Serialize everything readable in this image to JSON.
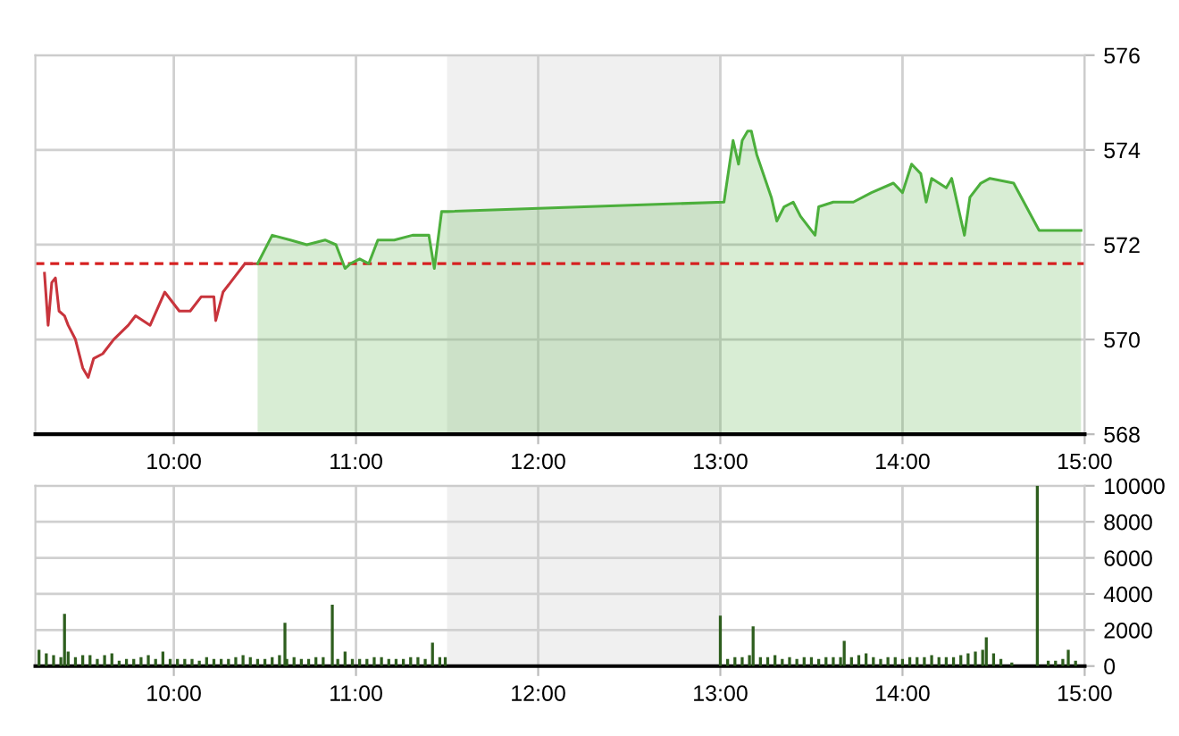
{
  "chart_data": [
    {
      "type": "area",
      "xlim": [
        9.24,
        15.0
      ],
      "ylim": [
        568,
        576
      ],
      "yticks": [
        568,
        570,
        572,
        574,
        576
      ],
      "xticks": [
        {
          "value": 10,
          "label": "10:00"
        },
        {
          "value": 11,
          "label": "11:00"
        },
        {
          "value": 12,
          "label": "12:00"
        },
        {
          "value": 13,
          "label": "13:00"
        },
        {
          "value": 14,
          "label": "14:00"
        },
        {
          "value": 15,
          "label": "15:00"
        }
      ],
      "grid": true,
      "bands": [
        {
          "axis": "x",
          "from": 11.5,
          "to": 13.0,
          "color": "#f0f0f0"
        }
      ],
      "ref_lines": [
        {
          "axis": "y",
          "value": 571.6,
          "color": "#d62020",
          "line_style": "dashed"
        }
      ],
      "series": [
        {
          "type": "line",
          "color": "#c8343c",
          "x": [
            9.29,
            9.31,
            9.33,
            9.35,
            9.37,
            9.4,
            9.42,
            9.46,
            9.5,
            9.53,
            9.56,
            9.61,
            9.67,
            9.75,
            9.79,
            9.87,
            9.95,
            10.03,
            10.09,
            10.15,
            10.22,
            10.23,
            10.27,
            10.33,
            10.39,
            10.46
          ],
          "values": [
            571.4,
            570.3,
            571.2,
            571.3,
            570.6,
            570.5,
            570.3,
            570.0,
            569.4,
            569.2,
            569.6,
            569.7,
            570.0,
            570.3,
            570.5,
            570.3,
            571.0,
            570.6,
            570.6,
            570.9,
            570.9,
            570.4,
            571.0,
            571.3,
            571.6,
            571.6
          ]
        },
        {
          "color": "#4caf3c",
          "x": [
            10.46,
            10.54,
            10.64,
            10.73,
            10.83,
            10.89,
            10.94,
            10.97,
            11.02,
            11.07,
            11.12,
            11.21,
            11.31,
            11.4,
            11.43,
            11.47,
            11.5,
            13.02,
            13.07,
            13.1,
            13.12,
            13.15,
            13.17,
            13.2,
            13.28,
            13.31,
            13.35,
            13.4,
            13.44,
            13.52,
            13.54,
            13.62,
            13.73,
            13.83,
            13.95,
            14.0,
            14.05,
            14.1,
            14.13,
            14.16,
            14.24,
            14.27,
            14.34,
            14.37,
            14.43,
            14.48,
            14.61,
            14.75,
            14.98
          ],
          "values": [
            571.6,
            572.2,
            572.1,
            572.0,
            572.1,
            572.0,
            571.5,
            571.6,
            571.7,
            571.6,
            572.1,
            572.1,
            572.2,
            572.2,
            571.5,
            572.7,
            572.7,
            572.9,
            574.2,
            573.7,
            574.2,
            574.4,
            574.4,
            573.9,
            573.0,
            572.5,
            572.8,
            572.9,
            572.6,
            572.2,
            572.8,
            572.9,
            572.9,
            573.1,
            573.3,
            573.1,
            573.7,
            573.5,
            572.9,
            573.4,
            573.2,
            573.4,
            572.2,
            573.0,
            573.3,
            573.4,
            573.3,
            572.3,
            572.3
          ]
        }
      ]
    },
    {
      "type": "bar",
      "xlim": [
        9.24,
        15.0
      ],
      "ylim": [
        0,
        10000
      ],
      "yticks": [
        0,
        2000,
        4000,
        6000,
        8000,
        10000
      ],
      "xticks": [
        {
          "value": 10,
          "label": "10:00"
        },
        {
          "value": 11,
          "label": "11:00"
        },
        {
          "value": 12,
          "label": "12:00"
        },
        {
          "value": 13,
          "label": "13:00"
        },
        {
          "value": 14,
          "label": "14:00"
        },
        {
          "value": 15,
          "label": "15:00"
        }
      ],
      "grid": true,
      "bands": [
        {
          "axis": "x",
          "from": 11.5,
          "to": 13.0,
          "color": "#f0f0f0"
        }
      ],
      "series": [
        {
          "color": "#2e5e1e",
          "x": [
            9.26,
            9.3,
            9.34,
            9.38,
            9.4,
            9.42,
            9.46,
            9.5,
            9.54,
            9.58,
            9.62,
            9.66,
            9.7,
            9.74,
            9.78,
            9.82,
            9.86,
            9.9,
            9.94,
            9.98,
            10.02,
            10.06,
            10.1,
            10.14,
            10.18,
            10.22,
            10.26,
            10.3,
            10.34,
            10.38,
            10.42,
            10.46,
            10.5,
            10.54,
            10.58,
            10.61,
            10.62,
            10.66,
            10.7,
            10.74,
            10.78,
            10.82,
            10.87,
            10.9,
            10.94,
            10.98,
            11.02,
            11.06,
            11.1,
            11.14,
            11.18,
            11.22,
            11.26,
            11.3,
            11.34,
            11.38,
            11.42,
            11.46,
            11.49,
            13.0,
            13.04,
            13.08,
            13.12,
            13.16,
            13.18,
            13.22,
            13.26,
            13.3,
            13.34,
            13.38,
            13.42,
            13.46,
            13.5,
            13.54,
            13.58,
            13.62,
            13.66,
            13.68,
            13.72,
            13.76,
            13.8,
            13.84,
            13.88,
            13.92,
            13.96,
            14.0,
            14.04,
            14.08,
            14.12,
            14.16,
            14.2,
            14.24,
            14.28,
            14.32,
            14.36,
            14.4,
            14.44,
            14.46,
            14.5,
            14.54,
            14.6,
            14.74,
            14.8,
            14.84,
            14.88,
            14.91,
            14.95
          ],
          "values": [
            900,
            700,
            600,
            500,
            2900,
            800,
            500,
            600,
            600,
            400,
            600,
            700,
            300,
            400,
            400,
            500,
            600,
            400,
            800,
            400,
            400,
            400,
            400,
            300,
            500,
            400,
            400,
            400,
            500,
            600,
            500,
            400,
            400,
            500,
            600,
            2400,
            400,
            500,
            400,
            400,
            500,
            500,
            3400,
            400,
            800,
            400,
            400,
            400,
            500,
            500,
            400,
            400,
            400,
            500,
            500,
            400,
            1300,
            500,
            500,
            2800,
            400,
            500,
            500,
            600,
            2200,
            500,
            500,
            600,
            400,
            500,
            400,
            500,
            500,
            400,
            500,
            500,
            500,
            1400,
            500,
            600,
            700,
            500,
            400,
            500,
            500,
            400,
            500,
            500,
            500,
            600,
            500,
            500,
            500,
            600,
            700,
            800,
            900,
            1600,
            700,
            400,
            200,
            10000,
            300,
            300,
            400,
            900,
            300
          ]
        }
      ]
    }
  ]
}
